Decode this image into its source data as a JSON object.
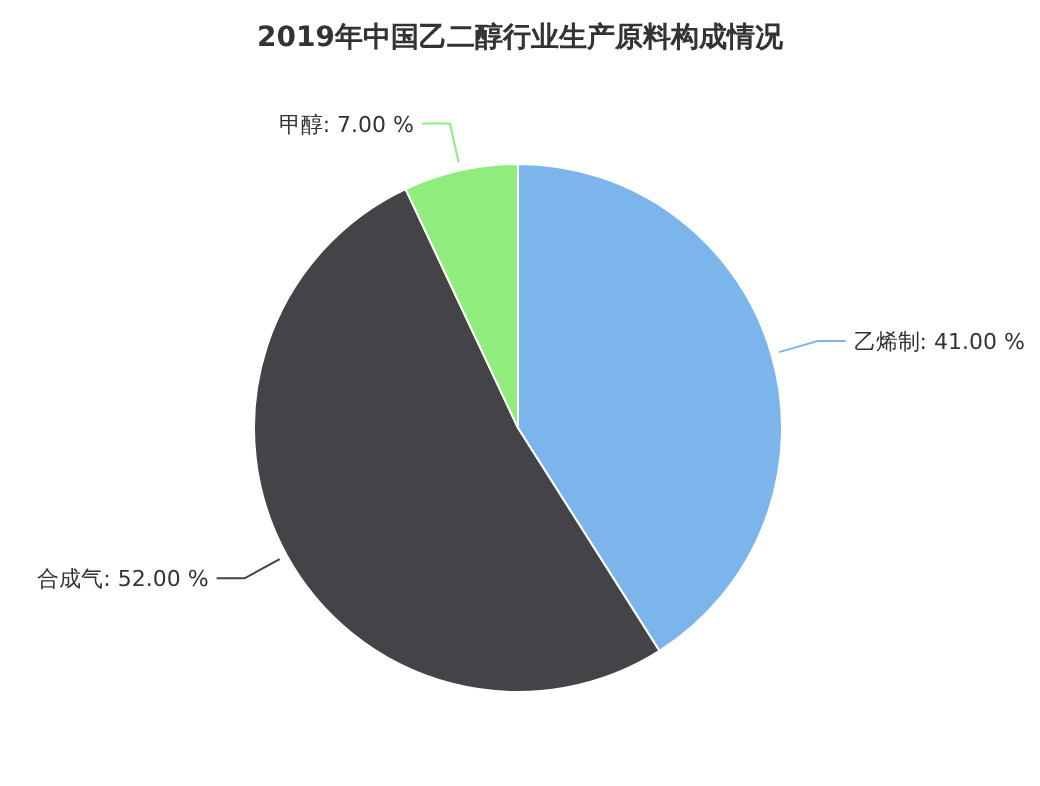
{
  "chart_data": {
    "type": "pie",
    "title": "2019年中国乙二醇行业生产原料构成情况",
    "categories": [
      "乙烯制",
      "合成气",
      "甲醇"
    ],
    "values": [
      41,
      52,
      7
    ],
    "value_labels": [
      "41.00 %",
      "52.00 %",
      "7.00 %"
    ],
    "colors": [
      "#7cb5ec",
      "#434348",
      "#90ed7d"
    ],
    "legend": false
  }
}
